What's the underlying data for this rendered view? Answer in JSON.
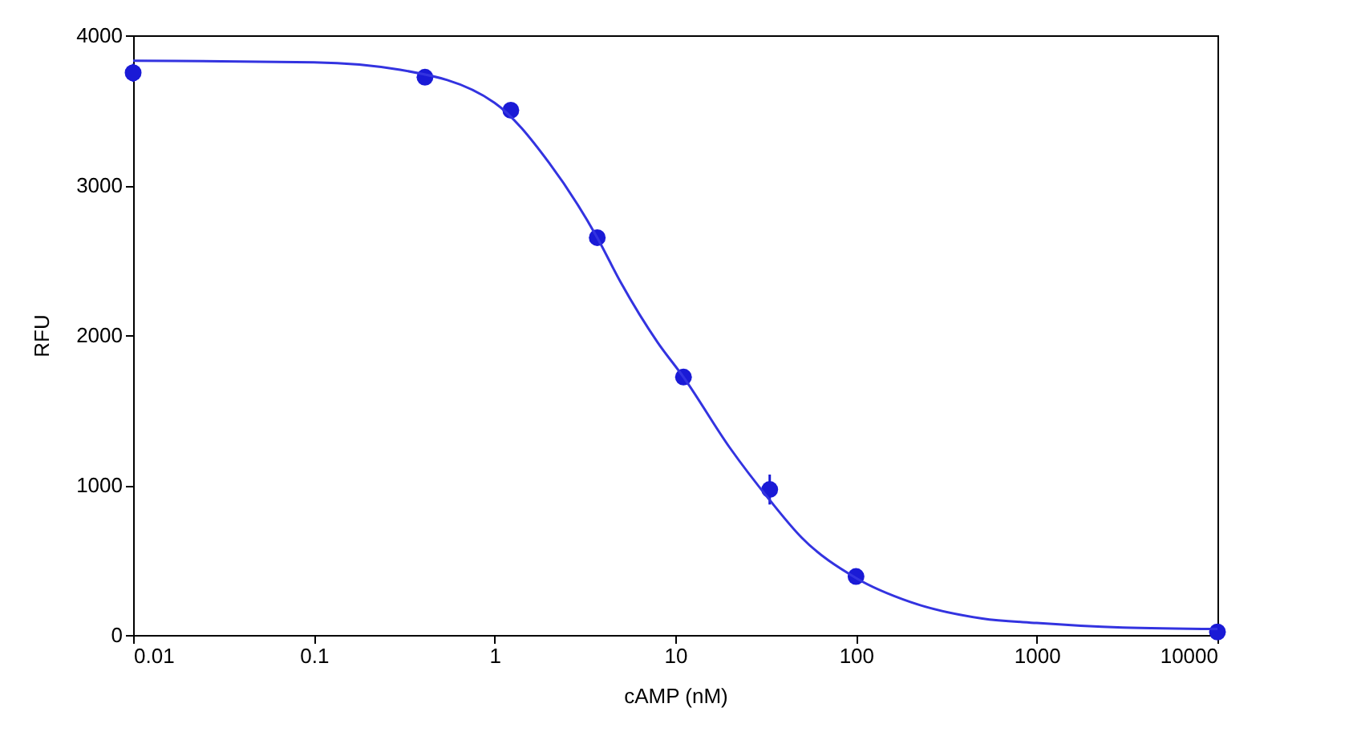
{
  "chart_data": {
    "type": "scatter",
    "xlabel": "cAMP (nM)",
    "ylabel": "RFU",
    "log": "x",
    "xlim": [
      0.01,
      10000
    ],
    "ylim": [
      0,
      4000
    ],
    "xticks": [
      0.01,
      0.1,
      1,
      10,
      100,
      1000,
      10000
    ],
    "yticks": [
      0,
      1000,
      2000,
      3000,
      4000
    ],
    "grid": false,
    "series": [
      {
        "marker": "circle",
        "color": "#1a1ad6",
        "x": [
          0.01,
          0.412,
          1.23,
          3.7,
          11.1,
          33.3,
          100,
          10000
        ],
        "values": [
          3750,
          3720,
          3500,
          2650,
          1720,
          970,
          390,
          20
        ],
        "errors": [
          60,
          null,
          null,
          null,
          null,
          100,
          null,
          null
        ]
      },
      {
        "type": "line",
        "marker": "none",
        "color": "#3333e0",
        "x": [
          0.01,
          0.1,
          0.3,
          1,
          2,
          3.7,
          5,
          8,
          11.1,
          20,
          33.3,
          50,
          100,
          200,
          500,
          1000,
          3000,
          10000
        ],
        "values": [
          3830,
          3820,
          3770,
          3550,
          3150,
          2650,
          2350,
          1950,
          1720,
          1250,
          900,
          650,
          380,
          220,
          110,
          80,
          50,
          40
        ]
      }
    ]
  }
}
